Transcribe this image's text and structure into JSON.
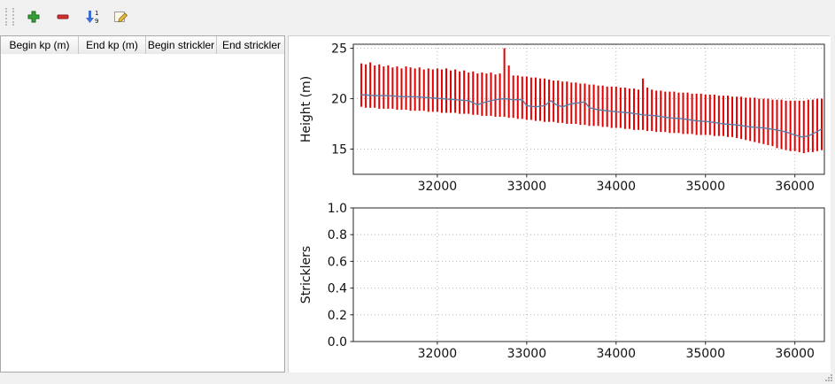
{
  "toolbar": {
    "buttons": [
      {
        "label": "add-row",
        "icon": "plus-icon"
      },
      {
        "label": "remove-row",
        "icon": "minus-icon"
      },
      {
        "label": "sort-rows",
        "icon": "sort-numeric-ascending-icon",
        "digit_top": "1",
        "digit_bottom": "9"
      },
      {
        "label": "edit",
        "icon": "edit-pencil-icon"
      }
    ]
  },
  "table": {
    "columns": [
      "Begin kp (m)",
      "End kp (m)",
      "Begin strickler",
      "End strickler"
    ],
    "rows": []
  },
  "colors": {
    "bars": "#e10000",
    "line": "#5a7ca6",
    "grid": "#b5b5b5",
    "axis": "#262626"
  },
  "chart_data": [
    {
      "type": "line",
      "title": "",
      "xlabel": "",
      "ylabel": "Height (m)",
      "xlim": [
        31060,
        36330
      ],
      "ylim": [
        12.5,
        25.4
      ],
      "xticks": [
        32000,
        33000,
        34000,
        35000,
        36000
      ],
      "xtick_labels": [
        "32000",
        "33000",
        "34000",
        "35000",
        "36000"
      ],
      "yticks": [
        15,
        20,
        25
      ],
      "ytick_labels": [
        "15",
        "20",
        "25"
      ],
      "grid": true,
      "series": [
        {
          "name": "elevation-range-bars",
          "type": "vbars",
          "color": "#e10000",
          "bars": [
            [
              31150,
              19.2,
              23.5
            ],
            [
              31200,
              19.1,
              23.4
            ],
            [
              31250,
              19.1,
              23.6
            ],
            [
              31300,
              19.1,
              23.3
            ],
            [
              31350,
              19.0,
              23.4
            ],
            [
              31400,
              19.0,
              23.2
            ],
            [
              31450,
              19.0,
              23.3
            ],
            [
              31500,
              19.0,
              23.1
            ],
            [
              31550,
              18.9,
              23.2
            ],
            [
              31600,
              18.9,
              23.0
            ],
            [
              31650,
              18.9,
              23.2
            ],
            [
              31700,
              18.8,
              23.1
            ],
            [
              31750,
              18.8,
              23.0
            ],
            [
              31800,
              18.8,
              23.1
            ],
            [
              31850,
              18.8,
              22.9
            ],
            [
              31900,
              18.7,
              23.0
            ],
            [
              31950,
              18.7,
              22.9
            ],
            [
              32000,
              18.7,
              23.0
            ],
            [
              32050,
              18.6,
              22.9
            ],
            [
              32100,
              18.6,
              23.0
            ],
            [
              32150,
              18.6,
              22.8
            ],
            [
              32200,
              18.6,
              22.9
            ],
            [
              32250,
              18.5,
              22.7
            ],
            [
              32300,
              18.5,
              22.8
            ],
            [
              32350,
              18.5,
              22.6
            ],
            [
              32400,
              18.4,
              22.7
            ],
            [
              32450,
              18.4,
              22.5
            ],
            [
              32500,
              18.3,
              22.6
            ],
            [
              32550,
              18.3,
              22.5
            ],
            [
              32600,
              18.3,
              22.6
            ],
            [
              32650,
              18.2,
              22.4
            ],
            [
              32700,
              18.2,
              22.5
            ],
            [
              32750,
              18.2,
              25.0
            ],
            [
              32800,
              18.1,
              23.3
            ],
            [
              32850,
              18.1,
              22.3
            ],
            [
              32900,
              18.0,
              22.3
            ],
            [
              32950,
              18.0,
              22.2
            ],
            [
              33000,
              17.9,
              22.2
            ],
            [
              33050,
              17.9,
              22.1
            ],
            [
              33100,
              17.8,
              22.1
            ],
            [
              33150,
              17.8,
              22.0
            ],
            [
              33200,
              17.7,
              22.0
            ],
            [
              33250,
              17.7,
              21.9
            ],
            [
              33300,
              17.7,
              21.8
            ],
            [
              33350,
              17.6,
              21.8
            ],
            [
              33400,
              17.6,
              21.7
            ],
            [
              33450,
              17.5,
              21.7
            ],
            [
              33500,
              17.5,
              21.6
            ],
            [
              33550,
              17.5,
              21.6
            ],
            [
              33600,
              17.4,
              21.5
            ],
            [
              33650,
              17.4,
              21.5
            ],
            [
              33700,
              17.3,
              21.4
            ],
            [
              33750,
              17.3,
              21.4
            ],
            [
              33800,
              17.3,
              21.3
            ],
            [
              33850,
              17.2,
              21.3
            ],
            [
              33900,
              17.2,
              21.2
            ],
            [
              33950,
              17.1,
              21.2
            ],
            [
              34000,
              17.1,
              21.2
            ],
            [
              34050,
              17.1,
              21.1
            ],
            [
              34100,
              17.0,
              21.1
            ],
            [
              34150,
              17.0,
              21.0
            ],
            [
              34200,
              16.9,
              21.0
            ],
            [
              34250,
              16.9,
              20.9
            ],
            [
              34300,
              16.9,
              22.0
            ],
            [
              34350,
              16.8,
              21.1
            ],
            [
              34400,
              16.8,
              20.9
            ],
            [
              34450,
              16.7,
              20.8
            ],
            [
              34500,
              16.7,
              20.8
            ],
            [
              34550,
              16.7,
              20.7
            ],
            [
              34600,
              16.6,
              20.7
            ],
            [
              34650,
              16.6,
              20.7
            ],
            [
              34700,
              16.6,
              20.6
            ],
            [
              34750,
              16.5,
              20.6
            ],
            [
              34800,
              16.5,
              20.6
            ],
            [
              34850,
              16.5,
              20.5
            ],
            [
              34900,
              16.4,
              20.5
            ],
            [
              34950,
              16.4,
              20.5
            ],
            [
              35000,
              16.4,
              20.4
            ],
            [
              35050,
              16.4,
              20.4
            ],
            [
              35100,
              16.3,
              20.4
            ],
            [
              35150,
              16.3,
              20.3
            ],
            [
              35200,
              16.3,
              20.3
            ],
            [
              35250,
              16.2,
              20.3
            ],
            [
              35300,
              16.2,
              20.2
            ],
            [
              35350,
              16.1,
              20.2
            ],
            [
              35400,
              16.0,
              20.2
            ],
            [
              35450,
              15.9,
              20.1
            ],
            [
              35500,
              15.8,
              20.1
            ],
            [
              35550,
              15.7,
              20.1
            ],
            [
              35600,
              15.6,
              20.0
            ],
            [
              35650,
              15.5,
              20.0
            ],
            [
              35700,
              15.4,
              20.0
            ],
            [
              35750,
              15.3,
              19.9
            ],
            [
              35800,
              15.1,
              19.9
            ],
            [
              35850,
              15.0,
              19.9
            ],
            [
              35900,
              14.9,
              19.8
            ],
            [
              35950,
              14.8,
              19.8
            ],
            [
              36000,
              14.8,
              19.8
            ],
            [
              36050,
              14.7,
              19.8
            ],
            [
              36100,
              14.6,
              19.8
            ],
            [
              36150,
              14.7,
              19.9
            ],
            [
              36200,
              14.7,
              19.9
            ],
            [
              36250,
              14.8,
              20.0
            ],
            [
              36300,
              14.9,
              20.0
            ]
          ]
        },
        {
          "name": "mean-bed-elevation-line",
          "type": "line",
          "color": "#5a7ca6",
          "points": [
            [
              31150,
              20.4
            ],
            [
              31300,
              20.3
            ],
            [
              31450,
              20.3
            ],
            [
              31600,
              20.2
            ],
            [
              31750,
              20.2
            ],
            [
              31900,
              20.1
            ],
            [
              32050,
              20.0
            ],
            [
              32200,
              19.9
            ],
            [
              32350,
              19.8
            ],
            [
              32450,
              19.4
            ],
            [
              32550,
              19.7
            ],
            [
              32650,
              19.9
            ],
            [
              32750,
              20.0
            ],
            [
              32850,
              19.9
            ],
            [
              32950,
              19.9
            ],
            [
              33000,
              19.3
            ],
            [
              33100,
              19.2
            ],
            [
              33200,
              19.3
            ],
            [
              33270,
              19.8
            ],
            [
              33330,
              19.4
            ],
            [
              33400,
              19.2
            ],
            [
              33500,
              19.5
            ],
            [
              33600,
              19.6
            ],
            [
              33650,
              19.7
            ],
            [
              33700,
              19.1
            ],
            [
              33800,
              18.9
            ],
            [
              33900,
              18.8
            ],
            [
              34000,
              18.7
            ],
            [
              34150,
              18.6
            ],
            [
              34300,
              18.4
            ],
            [
              34450,
              18.3
            ],
            [
              34600,
              18.1
            ],
            [
              34750,
              18.0
            ],
            [
              34900,
              17.8
            ],
            [
              35050,
              17.7
            ],
            [
              35200,
              17.5
            ],
            [
              35350,
              17.4
            ],
            [
              35500,
              17.2
            ],
            [
              35650,
              17.1
            ],
            [
              35800,
              16.9
            ],
            [
              35900,
              16.7
            ],
            [
              36000,
              16.4
            ],
            [
              36080,
              16.2
            ],
            [
              36150,
              16.3
            ],
            [
              36220,
              16.6
            ],
            [
              36300,
              17.0
            ]
          ]
        }
      ]
    },
    {
      "type": "line",
      "title": "",
      "xlabel": "",
      "ylabel": "Stricklers",
      "xlim": [
        31060,
        36330
      ],
      "ylim": [
        0,
        1
      ],
      "xticks": [
        32000,
        33000,
        34000,
        35000,
        36000
      ],
      "xtick_labels": [
        "32000",
        "33000",
        "34000",
        "35000",
        "36000"
      ],
      "yticks": [
        0,
        0.2,
        0.4,
        0.6,
        0.8,
        1.0
      ],
      "ytick_labels": [
        "0.0",
        "0.2",
        "0.4",
        "0.6",
        "0.8",
        "1.0"
      ],
      "grid": true,
      "series": []
    }
  ]
}
